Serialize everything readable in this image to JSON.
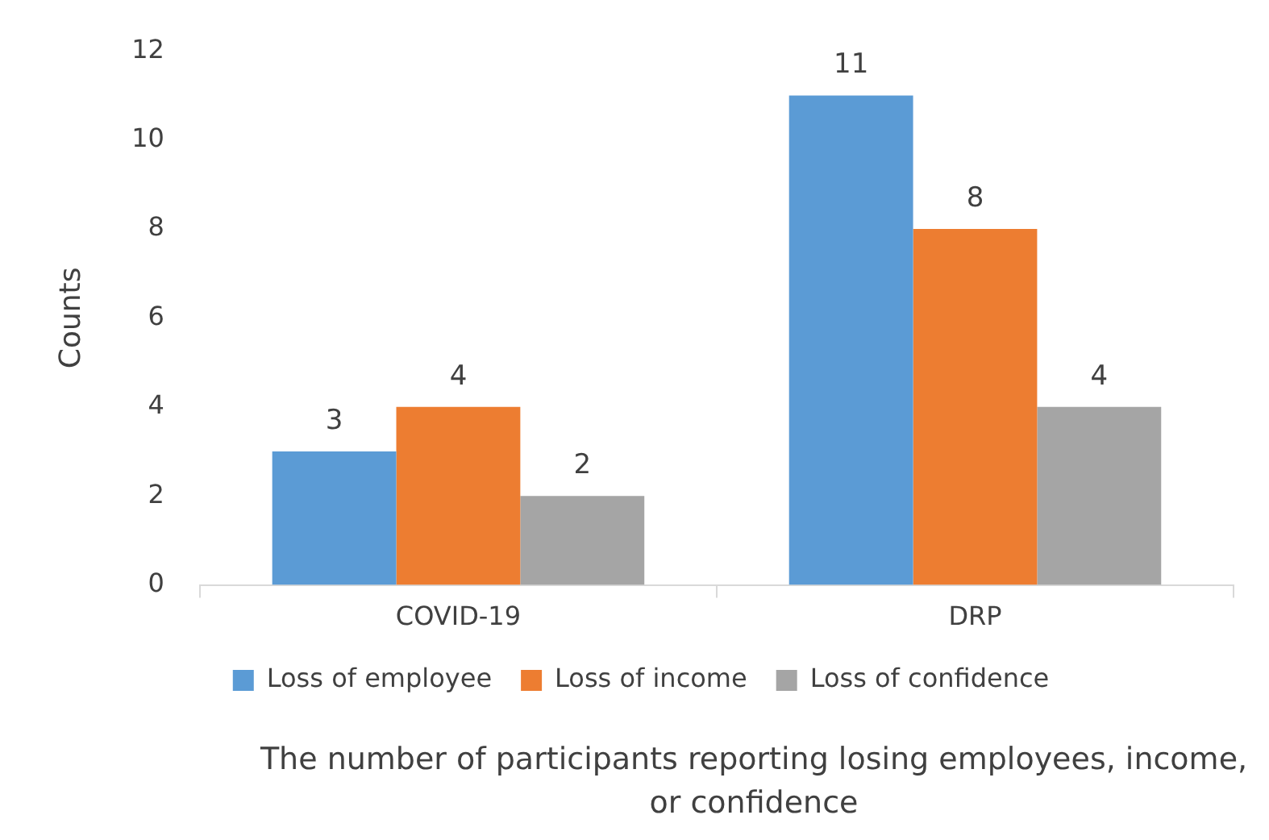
{
  "chart_data": {
    "type": "bar",
    "ylabel": "Counts",
    "categories": [
      "COVID-19",
      "DRP"
    ],
    "series": [
      {
        "name": "Loss of employee",
        "color": "#5b9bd5",
        "values": [
          3,
          11
        ]
      },
      {
        "name": "Loss of income",
        "color": "#ed7d31",
        "values": [
          4,
          8
        ]
      },
      {
        "name": "Loss of confidence",
        "color": "#a5a5a5",
        "values": [
          2,
          4
        ]
      }
    ],
    "ylim": [
      0,
      12
    ],
    "yticks": [
      0,
      2,
      4,
      6,
      8,
      10,
      12
    ],
    "grid": false,
    "legend": "bottom",
    "data_labels": true,
    "annotations": [
      "The number of participants reporting losing employees, income, or confidence"
    ]
  }
}
